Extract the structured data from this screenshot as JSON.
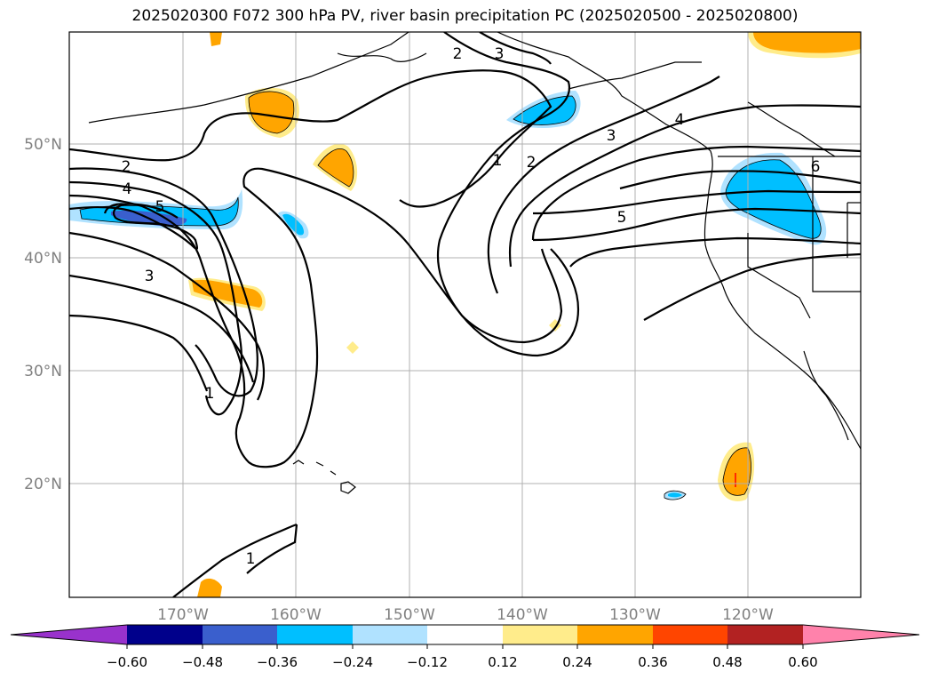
{
  "title": "2025020300 F072 300 hPa PV, river basin precipitation PC (2025020500 - 2025020800)",
  "map": {
    "lon_labels": [
      "170°W",
      "160°W",
      "150°W",
      "140°W",
      "130°W",
      "120°W"
    ],
    "lat_labels": [
      "50°N",
      "40°N",
      "30°N",
      "20°N"
    ],
    "contour_labels": [
      "1",
      "1",
      "1",
      "2",
      "2",
      "2",
      "3",
      "3",
      "3",
      "4",
      "4",
      "5",
      "5",
      "6"
    ]
  },
  "colorbar": {
    "ticks": [
      "−0.60",
      "−0.48",
      "−0.36",
      "−0.24",
      "−0.12",
      "0.12",
      "0.24",
      "0.36",
      "0.48",
      "0.60"
    ],
    "colors": {
      "min_extend": "#9932cc",
      "c1": "#00008b",
      "c2": "#3a5fcd",
      "c3": "#00bfff",
      "c4": "#b0e2ff",
      "c5": "#ffffff",
      "c6": "#ffec8b",
      "c7": "#ffa500",
      "c8": "#ff4500",
      "c9": "#b22222",
      "max_extend": "#ff82ab"
    }
  }
}
